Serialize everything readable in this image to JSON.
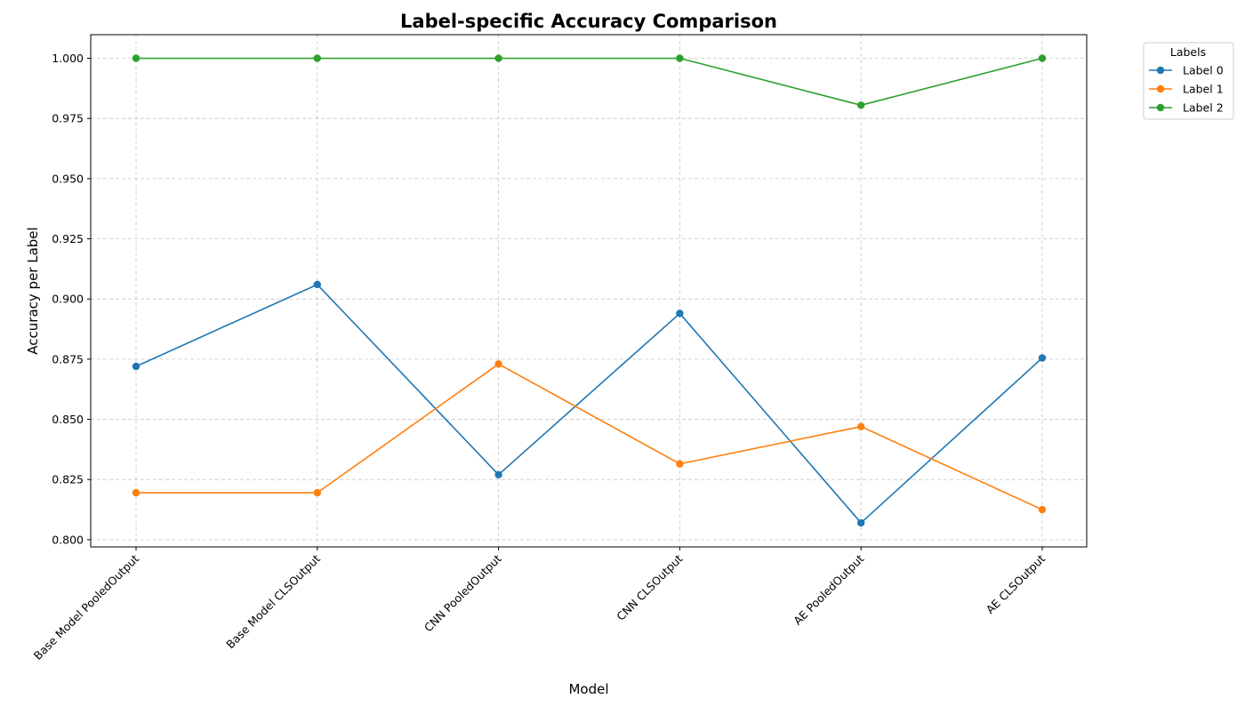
{
  "chart_data": {
    "type": "line",
    "title": "Label-specific Accuracy Comparison",
    "xlabel": "Model",
    "ylabel": "Accuracy per Label",
    "categories": [
      "Base Model PooledOutput",
      "Base Model CLSOutput",
      "CNN PooledOutput",
      "CNN CLSOutput",
      "AE PooledOutput",
      "AE CLSOutput"
    ],
    "series": [
      {
        "name": "Label 0",
        "color": "#1f77b4",
        "values": [
          0.872,
          0.906,
          0.827,
          0.894,
          0.807,
          0.8755
        ]
      },
      {
        "name": "Label 1",
        "color": "#ff7f0e",
        "values": [
          0.8195,
          0.8195,
          0.873,
          0.8315,
          0.847,
          0.8125
        ]
      },
      {
        "name": "Label 2",
        "color": "#2ca02c",
        "values": [
          1.0,
          1.0,
          1.0,
          1.0,
          0.9805,
          1.0
        ]
      }
    ],
    "ylim": [
      0.797,
      1.0098
    ],
    "yticks": [
      "0.800",
      "0.825",
      "0.850",
      "0.875",
      "0.900",
      "0.925",
      "0.950",
      "0.975",
      "1.000"
    ],
    "legend": {
      "title": "Labels",
      "placement": "outside-right"
    },
    "grid": true,
    "grid_style": "dashed"
  }
}
